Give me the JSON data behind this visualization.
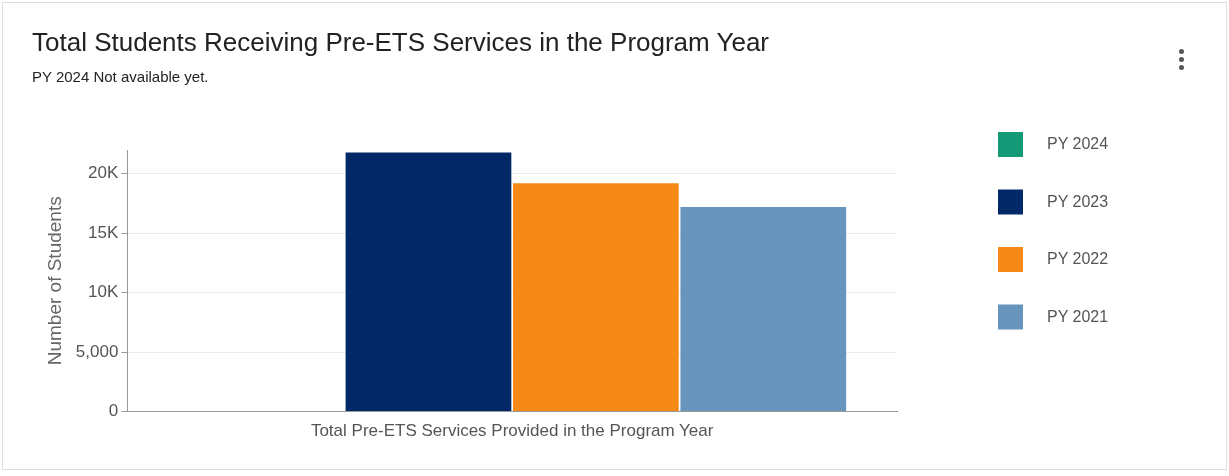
{
  "chart_data": {
    "type": "bar",
    "title": "Total Students Receiving Pre-ETS Services in the Program Year",
    "subtitle": "PY 2024 Not available yet.",
    "ylabel": "Number of Students",
    "categories": [
      "Total Pre-ETS Services Provided in the Program Year"
    ],
    "series": [
      {
        "name": "PY 2024",
        "color": "#159a77",
        "values": [
          null
        ]
      },
      {
        "name": "PY 2023",
        "color": "#022868",
        "values": [
          21800
        ]
      },
      {
        "name": "PY 2022",
        "color": "#f58a18",
        "values": [
          19200
        ]
      },
      {
        "name": "PY 2021",
        "color": "#6795be",
        "values": [
          17200
        ]
      }
    ],
    "ylim": [
      0,
      22000
    ],
    "yticks": [
      0,
      {
        "value": 5000,
        "label": "5,000"
      },
      {
        "value": 10000,
        "label": "10K"
      },
      {
        "value": 15000,
        "label": "15K"
      },
      {
        "value": 20000,
        "label": "20K"
      }
    ],
    "grid": "y",
    "legend": "right"
  }
}
